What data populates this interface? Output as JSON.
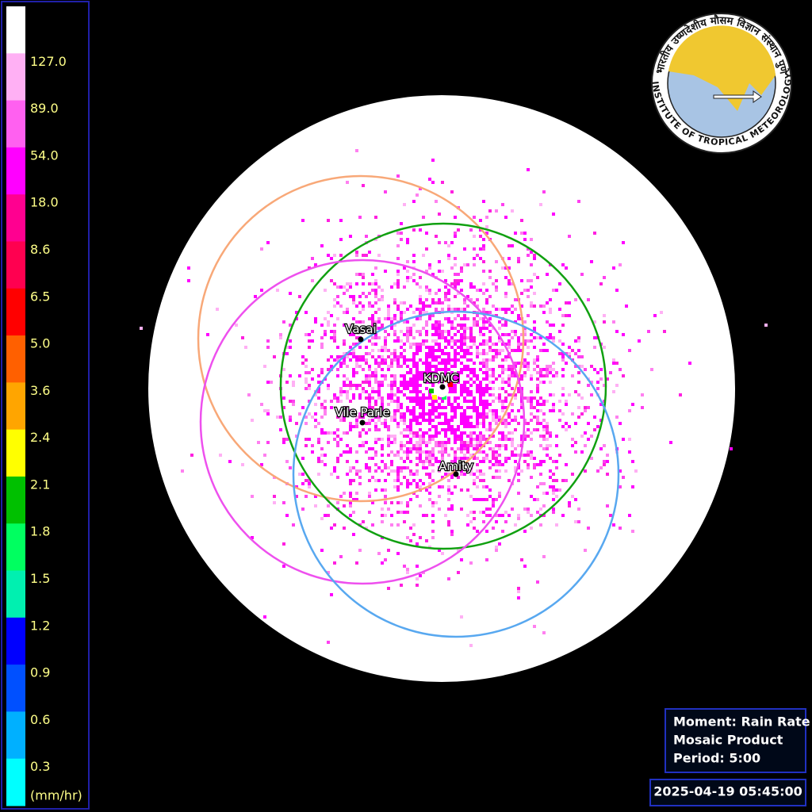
{
  "legend": {
    "labels": [
      "127.0",
      "89.0",
      "54.0",
      "18.0",
      "8.6",
      "6.5",
      "5.0",
      "3.6",
      "2.4",
      "2.1",
      "1.8",
      "1.5",
      "1.2",
      "0.9",
      "0.6",
      "0.3"
    ],
    "unit": "(mm/hr)",
    "colors": [
      "#ffffff",
      "#ffb0f4",
      "#ff60f0",
      "#ff00ff",
      "#ff0090",
      "#ff0050",
      "#ff0000",
      "#ff6000",
      "#ffa500",
      "#ffff00",
      "#00c000",
      "#00ff60",
      "#00f0b0",
      "#0000ff",
      "#0050ff",
      "#00b0ff",
      "#00ffff"
    ]
  },
  "stations": [
    {
      "label": "Vasai"
    },
    {
      "label": "KDMC"
    },
    {
      "label": "Vile Parle"
    },
    {
      "label": "Amity"
    }
  ],
  "logo": {
    "hindi": "भारतीय उष्णदेशीय मौसम विज्ञान संस्थान पुणे",
    "english": "INDIAN INSTITUTE OF TROPICAL METEOROLOGY PUNE"
  },
  "info": {
    "moment": "Moment: Rain Rate",
    "product": "Mosaic Product",
    "period": "Period: 5:00"
  },
  "timestamp": "2025-04-19 05:45:00"
}
